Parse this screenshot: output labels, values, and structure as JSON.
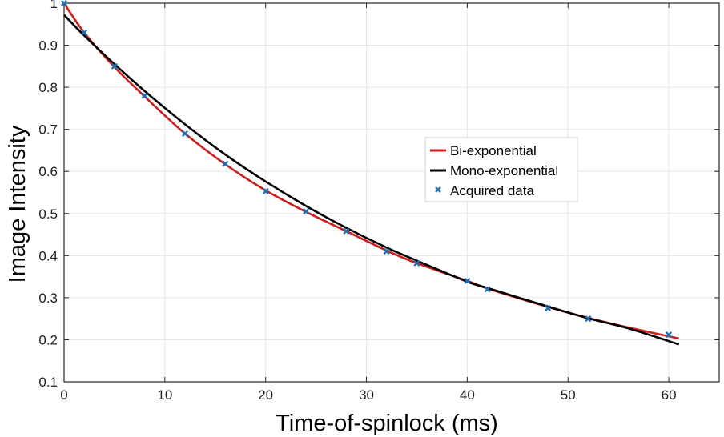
{
  "chart_data": {
    "type": "line",
    "title": "",
    "xlabel": "Time-of-spinlock  (ms)",
    "ylabel": "Image Intensity",
    "xlim": [
      0,
      65
    ],
    "ylim": [
      0.1,
      1.0
    ],
    "xticks": [
      0,
      10,
      20,
      30,
      40,
      50,
      60
    ],
    "yticks": [
      0.1,
      0.2,
      0.3,
      0.4,
      0.5,
      0.6,
      0.7,
      0.8,
      0.9,
      1.0
    ],
    "xtick_labels": [
      "0",
      "10",
      "20",
      "30",
      "40",
      "50",
      "60"
    ],
    "ytick_labels": [
      "0.1",
      "0.2",
      "0.3",
      "0.4",
      "0.5",
      "0.6",
      "0.7",
      "0.8",
      "0.9",
      "1"
    ],
    "grid": true,
    "legend_position": "center-right",
    "series": [
      {
        "name": "Bi-exponential",
        "style": "line",
        "color": "#cc1f1f",
        "x": [
          0,
          2,
          5,
          8,
          12,
          16,
          20,
          24,
          28,
          32,
          35,
          40,
          42,
          48,
          52,
          56,
          61
        ],
        "y": [
          1.0,
          0.93,
          0.848,
          0.778,
          0.69,
          0.617,
          0.555,
          0.504,
          0.458,
          0.412,
          0.382,
          0.34,
          0.322,
          0.278,
          0.252,
          0.229,
          0.203
        ]
      },
      {
        "name": "Mono-exponential",
        "style": "line",
        "color": "#000000",
        "x": [
          0,
          2,
          5,
          8,
          12,
          16,
          20,
          24,
          28,
          32,
          35,
          40,
          42,
          48,
          52,
          56,
          61
        ],
        "y": [
          0.972,
          0.923,
          0.855,
          0.791,
          0.712,
          0.64,
          0.576,
          0.518,
          0.466,
          0.419,
          0.388,
          0.338,
          0.323,
          0.279,
          0.251,
          0.227,
          0.189
        ]
      },
      {
        "name": "Acquired data",
        "style": "marker",
        "marker": "x",
        "color": "#1f6fb2",
        "x": [
          0,
          2,
          5,
          8,
          12,
          16,
          20,
          24,
          28,
          32,
          35,
          40,
          42,
          48,
          52,
          60
        ],
        "y": [
          1.0,
          0.93,
          0.85,
          0.78,
          0.69,
          0.618,
          0.553,
          0.505,
          0.458,
          0.41,
          0.382,
          0.34,
          0.32,
          0.275,
          0.25,
          0.212
        ]
      }
    ]
  }
}
